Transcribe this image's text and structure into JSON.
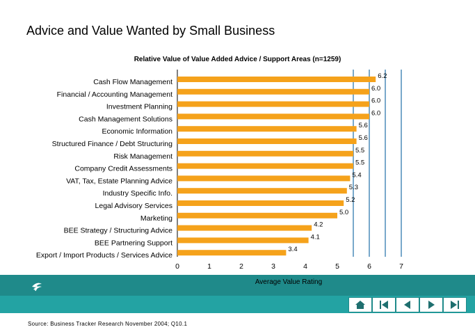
{
  "page_title": "Advice and Value Wanted by Small Business",
  "source": "Source: Business Tracker Research November 2004; Q10.1",
  "nav": {
    "icons": [
      "home-icon",
      "first-slide-icon",
      "previous-slide-icon",
      "next-slide-icon",
      "last-slide-icon"
    ]
  },
  "colors": {
    "bar": "#f5a21b",
    "grid": "#1f6fa8",
    "band": "#1f8a8a",
    "band_light": "#23a3a3"
  },
  "chart_data": {
    "type": "bar",
    "orientation": "horizontal",
    "title": "Relative Value of Value Added Advice / Support Areas (n=1259)",
    "xlabel": "Average Value Rating",
    "xlim": [
      0,
      7
    ],
    "xticks": [
      "0",
      "1",
      "2",
      "3",
      "4",
      "5",
      "6",
      "7"
    ],
    "grid": "vertical lines at 5.5, 6, 6.5, 7",
    "categories": [
      "Cash Flow Management",
      "Financial / Accounting Management",
      "Investment Planning",
      "Cash Management Solutions",
      "Economic Information",
      "Structured Finance / Debt Structuring",
      "Risk Management",
      "Company Credit Assessments",
      "VAT, Tax, Estate Planning Advice",
      "Industry Specific Info.",
      "Legal Advisory Services",
      "Marketing",
      "BEE Strategy / Structuring Advice",
      "BEE Partnering Support",
      "Export / Import Products / Services Advice"
    ],
    "values": [
      6.2,
      6.0,
      6.0,
      6.0,
      5.6,
      5.6,
      5.5,
      5.5,
      5.4,
      5.3,
      5.2,
      5.0,
      4.2,
      4.1,
      3.4
    ],
    "value_labels": [
      "6.2",
      "6.0",
      "6.0",
      "6.0",
      "5.6",
      "5.6",
      "5.5",
      "5.5",
      "5.4",
      "5.3",
      "5.2",
      "5.0",
      "4.2",
      "4.1",
      "3.4"
    ]
  }
}
